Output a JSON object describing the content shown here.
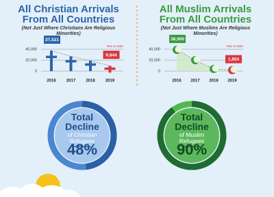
{
  "chart_data": [
    {
      "type": "line",
      "title": "All Christian Arrivals From All Countries",
      "subtitle": "(Not Just Where Christians Are Religious Minorities)",
      "annotation": "Year to Date",
      "categories": [
        "2016",
        "2017",
        "2018",
        "2019"
      ],
      "values": [
        37521,
        27000,
        19000,
        9844
      ],
      "value_labels": [
        "37,521",
        null,
        null,
        "9,844"
      ],
      "color": "#2e64a8",
      "point_colors": [
        "#2e64a8",
        "#2e64a8",
        "#2e64a8",
        "#d9363e"
      ],
      "marker": "cross",
      "ylim": [
        0,
        55000
      ],
      "yticks": [
        {
          "value": 40000,
          "label": "40,000"
        },
        {
          "value": 20000,
          "label": "20,000"
        },
        0
      ]
    },
    {
      "type": "line",
      "title": "All Muslim Arrivals From All Countries",
      "subtitle": "(Not Just Where Muslims Are Religious Minorities)",
      "annotation": "Year to Date",
      "categories": [
        "2016",
        "2017",
        "2018",
        "2019"
      ],
      "values": [
        38900,
        20000,
        4000,
        1854
      ],
      "value_labels": [
        "38,900",
        null,
        null,
        "1,854"
      ],
      "color": "#3a9a3e",
      "point_colors": [
        "#3a9a3e",
        "#3a9a3e",
        "#3a9a3e",
        "#d9363e"
      ],
      "marker": "crescent",
      "area": true,
      "ylim": [
        0,
        55000
      ],
      "yticks": [
        {
          "value": 40000,
          "label": "40,000"
        },
        {
          "value": 20000,
          "label": "20,000"
        },
        0
      ]
    },
    {
      "type": "donut",
      "title": "Total Decline",
      "subtitle": "of Christian Refugees",
      "value": 48,
      "value_label": "48%",
      "color": "#2b5fa6",
      "track_color": "#4b86cf",
      "inner_color": "#a8c8ee",
      "text_color": "#1f4e8c"
    },
    {
      "type": "donut",
      "title": "Total Decline",
      "subtitle": "of Muslim Refugees",
      "value": 90,
      "value_label": "90%",
      "color": "#1f6b32",
      "track_color": "#55b84f",
      "inner_color": "#5cb85c",
      "text_color": "#114a22"
    }
  ]
}
